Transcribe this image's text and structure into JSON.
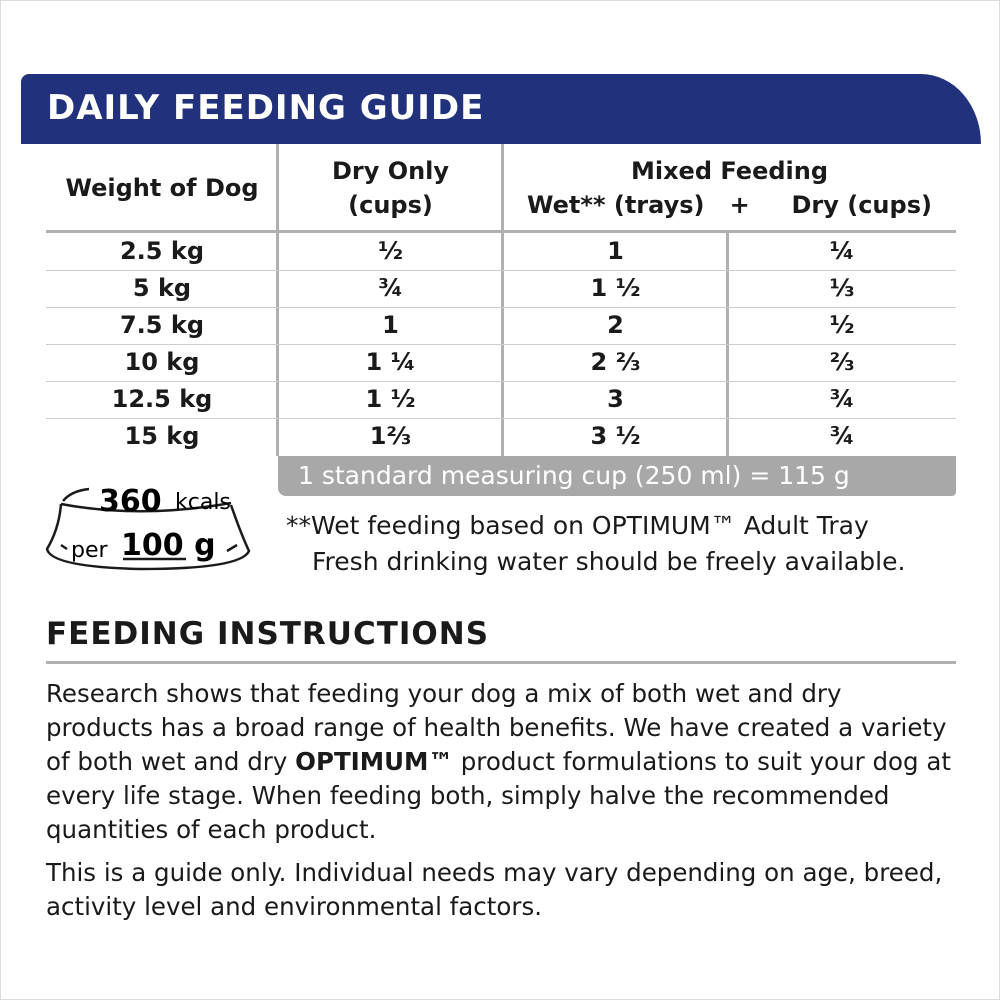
{
  "title": "DAILY FEEDING GUIDE",
  "table": {
    "headers": {
      "weight": "Weight of Dog",
      "dry_line1": "Dry Only",
      "dry_line2": "(cups)",
      "mixed": "Mixed Feeding",
      "wet": "Wet** (trays)",
      "plus": "+",
      "mixed_dry": "Dry (cups)"
    },
    "rows": [
      [
        "2.5 kg",
        "½",
        "1",
        "¼"
      ],
      [
        "5 kg",
        "¾",
        "1 ½",
        "⅓"
      ],
      [
        "7.5 kg",
        "1",
        "2",
        "½"
      ],
      [
        "10 kg",
        "1 ¼",
        "2 ⅔",
        "⅔"
      ],
      [
        "12.5 kg",
        "1 ½",
        "3",
        "¾"
      ],
      [
        "15 kg",
        "1⅔",
        "3 ½",
        "¾"
      ]
    ]
  },
  "cup_note": "1 standard measuring cup (250 ml) = 115 g",
  "energy": {
    "kcal_value": "360",
    "kcal_unit": "kcals",
    "per": "per",
    "amount": "100 g"
  },
  "wet_note": "**Wet feeding based on OPTIMUM™ Adult Tray",
  "water_note": "Fresh drinking water should be freely available.",
  "instructions": {
    "heading": "FEEDING INSTRUCTIONS",
    "p1_a": "Research shows that feeding your dog a mix of both wet and dry products has a broad range of health benefits.  We have created a variety of both wet and dry ",
    "p1_brand": "OPTIMUM™",
    "p1_b": " product formulations to suit your dog at every life stage.  When feeding both, simply halve the recommended quantities of each product.",
    "p2": "This is a guide only. Individual needs may vary depending on age, breed, activity level and environmental factors."
  },
  "colors": {
    "header_bg": "#22317c",
    "cup_bar": "#a8a8a8",
    "lines": "#b0b0b0"
  }
}
